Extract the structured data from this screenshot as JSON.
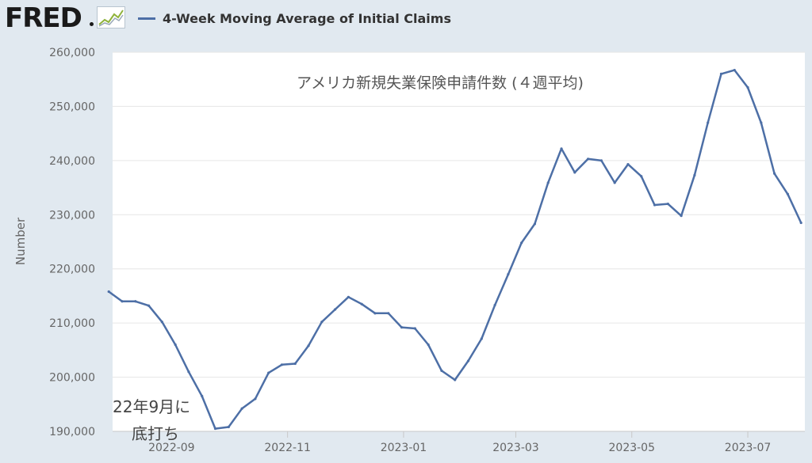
{
  "brand": {
    "logo_text": "FRED"
  },
  "chart_data": {
    "type": "line",
    "title": "アメリカ新規失業保険申請件数 (４週平均)",
    "ylabel": "Number",
    "xlabel": "",
    "ylim": [
      190000,
      260000
    ],
    "yticks": [
      190000,
      200000,
      210000,
      220000,
      230000,
      240000,
      250000,
      260000
    ],
    "ytick_labels": [
      "190,000",
      "200,000",
      "210,000",
      "220,000",
      "230,000",
      "240,000",
      "250,000",
      "260,000"
    ],
    "xlim": [
      "2022-08-01",
      "2023-07-31"
    ],
    "xticks": [
      "2022-09-01",
      "2022-11-01",
      "2023-01-01",
      "2023-03-01",
      "2023-05-01",
      "2023-07-01"
    ],
    "xtick_labels": [
      "2022-09",
      "2022-11",
      "2023-01",
      "2023-03",
      "2023-05",
      "2023-07"
    ],
    "grid": true,
    "legend_placement": "top-left",
    "series": [
      {
        "name": "4-Week Moving Average of Initial Claims",
        "color": "#4d6fa6",
        "x": [
          "2022-07-30",
          "2022-08-06",
          "2022-08-13",
          "2022-08-20",
          "2022-08-27",
          "2022-09-03",
          "2022-09-10",
          "2022-09-17",
          "2022-09-24",
          "2022-10-01",
          "2022-10-08",
          "2022-10-15",
          "2022-10-22",
          "2022-10-29",
          "2022-11-05",
          "2022-11-12",
          "2022-11-19",
          "2022-11-26",
          "2022-12-03",
          "2022-12-10",
          "2022-12-17",
          "2022-12-24",
          "2022-12-31",
          "2023-01-07",
          "2023-01-14",
          "2023-01-21",
          "2023-01-28",
          "2023-02-04",
          "2023-02-11",
          "2023-02-18",
          "2023-02-25",
          "2023-03-04",
          "2023-03-11",
          "2023-03-18",
          "2023-03-25",
          "2023-04-01",
          "2023-04-08",
          "2023-04-15",
          "2023-04-22",
          "2023-04-29",
          "2023-05-06",
          "2023-05-13",
          "2023-05-20",
          "2023-05-27",
          "2023-06-03",
          "2023-06-10",
          "2023-06-17",
          "2023-06-24",
          "2023-07-01",
          "2023-07-08",
          "2023-07-15",
          "2023-07-22",
          "2023-07-29"
        ],
        "values": [
          215800,
          214000,
          214000,
          213200,
          210200,
          206000,
          201000,
          196500,
          190500,
          190800,
          194200,
          196000,
          200800,
          202300,
          202500,
          205800,
          210200,
          212500,
          214800,
          213500,
          211800,
          211800,
          209200,
          209000,
          206000,
          201200,
          199500,
          203000,
          207100,
          213300,
          219000,
          224800,
          228300,
          235900,
          242200,
          237800,
          240300,
          240000,
          235900,
          239300,
          237100,
          231800,
          232000,
          229800,
          237300,
          247000,
          256000,
          256700,
          253500,
          247000,
          237600,
          233800,
          228500
        ]
      }
    ],
    "annotations": [
      "22年9月に",
      "底打ち"
    ]
  }
}
